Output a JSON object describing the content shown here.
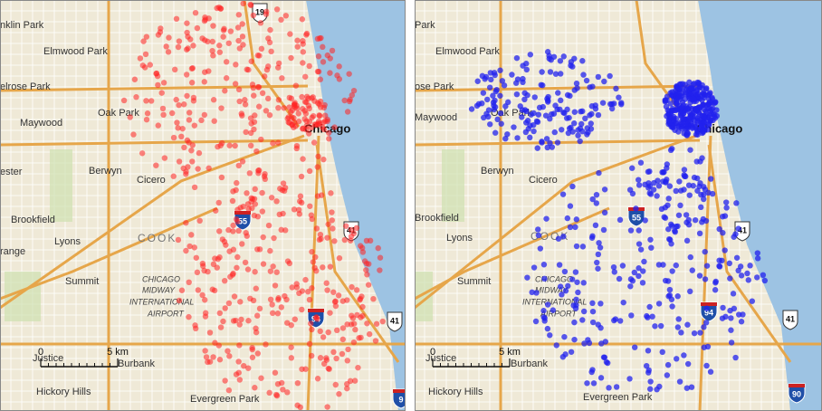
{
  "maps": [
    {
      "labels": [
        "nklin Park",
        "Elmwood Park",
        "elrose Park",
        "Maywood",
        "Oak Park",
        "Chicago",
        "ester",
        "Berwyn",
        "Cicero",
        "Brookfield",
        "COOK",
        "Lyons",
        "range",
        "Summit",
        "CHICAGO",
        "MIDWAY",
        "INTERNATIONAL",
        "AIRPORT",
        "Justice",
        "Burbank",
        "Hickory Hills",
        "Evergreen Park"
      ],
      "shields": [
        "19",
        "55",
        "41",
        "94",
        "41",
        "9"
      ],
      "scale": {
        "zero": "0",
        "distance": "5 km"
      }
    },
    {
      "labels": [
        "Park",
        "Elmwood Park",
        "ose Park",
        "Maywood",
        "Oak Park",
        "Chicago",
        "Berwyn",
        "Cicero",
        "Brookfield",
        "COOK",
        "Lyons",
        "Summit",
        "CHICAGO",
        "MIDWAY",
        "INTERNATIONAL",
        "AIRPORT",
        "Justice",
        "Burbank",
        "Hickory Hills",
        "Evergreen Park"
      ],
      "shields": [
        "55",
        "41",
        "94",
        "41",
        "90"
      ],
      "scale": {
        "zero": "0",
        "distance": "5 km"
      }
    }
  ]
}
